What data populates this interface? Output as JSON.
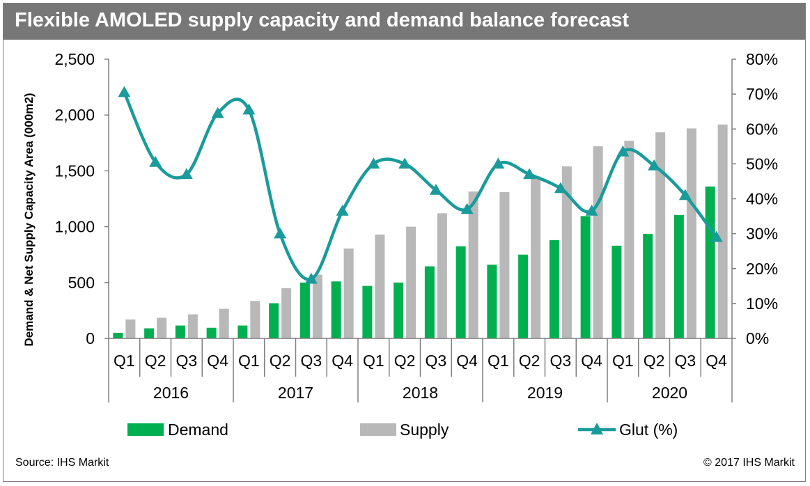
{
  "header": {
    "title": "Flexible AMOLED supply capacity and demand balance forecast"
  },
  "footer": {
    "source": "Source: IHS Markit",
    "copyright": "© 2017 IHS Markit"
  },
  "colors": {
    "demand": "#00b050",
    "supply": "#b8b8b8",
    "glut": "#1a9b9b",
    "title_bar": "#777777"
  },
  "chart_data": {
    "type": "bar",
    "title": "Flexible AMOLED supply capacity and demand balance forecast",
    "ylabel": "Demand & Net Supply Capacity Area (000m2)",
    "y2label": "",
    "ylim": [
      0,
      2500
    ],
    "y2lim": [
      0,
      80
    ],
    "y_ticks": [
      "0",
      "500",
      "1,000",
      "1,500",
      "2,000",
      "2,500"
    ],
    "y2_ticks": [
      "0%",
      "10%",
      "20%",
      "30%",
      "40%",
      "50%",
      "60%",
      "70%",
      "80%"
    ],
    "categories": [
      "Q1",
      "Q2",
      "Q3",
      "Q4",
      "Q1",
      "Q2",
      "Q3",
      "Q4",
      "Q1",
      "Q2",
      "Q3",
      "Q4",
      "Q1",
      "Q2",
      "Q3",
      "Q4",
      "Q1",
      "Q2",
      "Q3",
      "Q4"
    ],
    "years": [
      "2016",
      "2017",
      "2018",
      "2019",
      "2020"
    ],
    "grid": false,
    "legend_position": "bottom",
    "series": [
      {
        "name": "Demand",
        "type": "bar",
        "axis": "left",
        "values": [
          50,
          90,
          115,
          95,
          115,
          315,
          500,
          510,
          470,
          500,
          645,
          825,
          660,
          750,
          880,
          1095,
          830,
          935,
          1105,
          1360
        ]
      },
      {
        "name": "Supply",
        "type": "bar",
        "axis": "left",
        "values": [
          170,
          185,
          215,
          265,
          335,
          450,
          570,
          805,
          930,
          1000,
          1120,
          1315,
          1310,
          1450,
          1540,
          1720,
          1770,
          1845,
          1880,
          1915
        ]
      },
      {
        "name": "Glut (%)",
        "type": "line",
        "axis": "right",
        "values": [
          70.5,
          50.5,
          47,
          64.5,
          65.5,
          30,
          17,
          36.5,
          50,
          50,
          42.5,
          37,
          50,
          47,
          43,
          36.5,
          53.5,
          49.5,
          41,
          29
        ]
      }
    ]
  }
}
